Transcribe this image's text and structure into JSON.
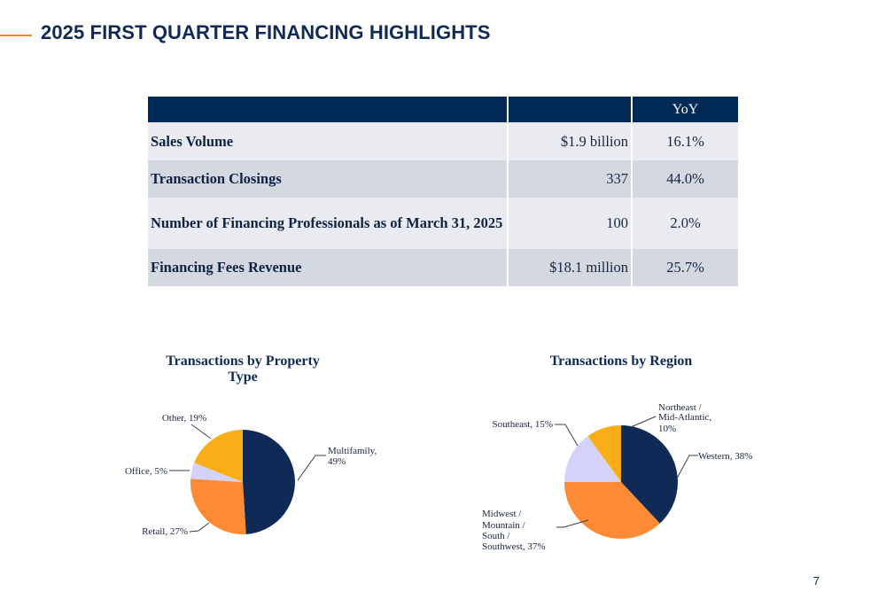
{
  "title": "2025 FIRST QUARTER FINANCING HIGHLIGHTS",
  "colors": {
    "accent": "#f4843a",
    "navy": "#022a57",
    "row_light": "#e9ebf0",
    "row_dark": "#d3d8e1",
    "navy_slice": "#0f2a57",
    "orange_slice": "#fd8a35",
    "lavender_slice": "#d4d2fb",
    "gold_slice": "#fbad18"
  },
  "table": {
    "headers": [
      "",
      "",
      "YoY"
    ],
    "rows": [
      {
        "label": "Sales Volume",
        "value": "$1.9 billion",
        "yoy": "16.1%"
      },
      {
        "label": "Transaction Closings",
        "value": "337",
        "yoy": "44.0%"
      },
      {
        "label": "Number of Financing Professionals as of March 31, 2025",
        "value": "100",
        "yoy": "2.0%"
      },
      {
        "label": "Financing Fees Revenue",
        "value": "$18.1 million",
        "yoy": "25.7%"
      }
    ]
  },
  "chart_data": [
    {
      "type": "pie",
      "title": "Transactions by Property Type",
      "categories": [
        "Multifamily",
        "Retail",
        "Office",
        "Other"
      ],
      "values": [
        49,
        27,
        5,
        19
      ],
      "data_labels": [
        "Multifamily, 49%",
        "Retail, 27%",
        "Office, 5%",
        "Other, 19%"
      ],
      "colors": [
        "#0f2a57",
        "#fd8a35",
        "#d4d2fb",
        "#fbad18"
      ]
    },
    {
      "type": "pie",
      "title": "Transactions by Region",
      "categories": [
        "Western",
        "Midwest / Mountain / South / Southwest",
        "Southeast",
        "Northeast / Mid-Atlantic"
      ],
      "values": [
        38,
        37,
        15,
        10
      ],
      "data_labels": [
        "Western, 38%",
        "Midwest / Mountain / South / Southwest, 37%",
        "Southeast, 15%",
        "Northeast / Mid-Atlantic, 10%"
      ],
      "colors": [
        "#0f2a57",
        "#fd8a35",
        "#d4d2fb",
        "#fbad18"
      ]
    }
  ],
  "page_number": "7"
}
